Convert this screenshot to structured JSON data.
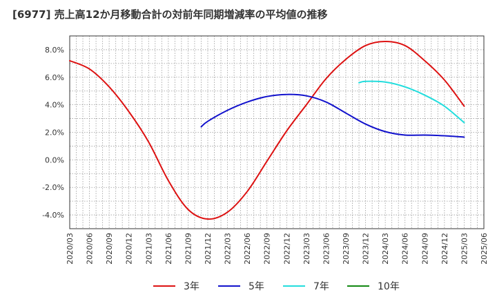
{
  "title": "[6977]  売上高12か月移動合計の対前年同期増減率の平均値の推移",
  "chart_data": {
    "type": "line",
    "ylim": [
      -5.0,
      9.0
    ],
    "yticks": [
      -4.0,
      -2.0,
      0.0,
      2.0,
      4.0,
      6.0,
      8.0
    ],
    "ytick_labels": [
      "-4.0%",
      "-2.0%",
      "0.0%",
      "2.0%",
      "4.0%",
      "6.0%",
      "8.0%"
    ],
    "x_labels": [
      "2020/03",
      "2020/06",
      "2020/09",
      "2020/12",
      "2021/03",
      "2021/06",
      "2021/09",
      "2021/12",
      "2022/03",
      "2022/06",
      "2022/09",
      "2022/12",
      "2023/03",
      "2023/06",
      "2023/09",
      "2023/12",
      "2024/03",
      "2024/06",
      "2024/09",
      "2024/12",
      "2025/03",
      "2025/06"
    ],
    "grid": true,
    "legend_position": "bottom",
    "series": [
      {
        "name": "3年",
        "color": "#dd1111",
        "x": [
          "2020/03",
          "2020/06",
          "2020/09",
          "2020/12",
          "2021/03",
          "2021/06",
          "2021/09",
          "2021/12",
          "2022/03",
          "2022/06",
          "2022/09",
          "2022/12",
          "2023/03",
          "2023/06",
          "2023/09",
          "2023/12",
          "2024/03",
          "2024/06",
          "2024/09",
          "2024/12",
          "2025/03"
        ],
        "values": [
          7.2,
          6.6,
          5.3,
          3.5,
          1.3,
          -1.5,
          -3.6,
          -4.3,
          -3.8,
          -2.3,
          -0.1,
          2.1,
          4.0,
          5.9,
          7.3,
          8.3,
          8.6,
          8.3,
          7.2,
          5.8,
          3.9
        ]
      },
      {
        "name": "5年",
        "color": "#1111cc",
        "x": [
          "2021/11",
          "2021/12",
          "2022/03",
          "2022/06",
          "2022/09",
          "2022/12",
          "2023/03",
          "2023/06",
          "2023/09",
          "2023/12",
          "2024/03",
          "2024/06",
          "2024/09",
          "2024/12",
          "2025/03"
        ],
        "values": [
          2.4,
          2.8,
          3.6,
          4.2,
          4.6,
          4.75,
          4.65,
          4.2,
          3.4,
          2.6,
          2.05,
          1.8,
          1.8,
          1.75,
          1.65
        ]
      },
      {
        "name": "7年",
        "color": "#22dddd",
        "x": [
          "2023/11",
          "2023/12",
          "2024/03",
          "2024/06",
          "2024/09",
          "2024/12",
          "2025/03"
        ],
        "values": [
          5.6,
          5.7,
          5.65,
          5.3,
          4.7,
          3.9,
          2.7
        ]
      },
      {
        "name": "10年",
        "color": "#118811",
        "x": [],
        "values": []
      }
    ]
  }
}
